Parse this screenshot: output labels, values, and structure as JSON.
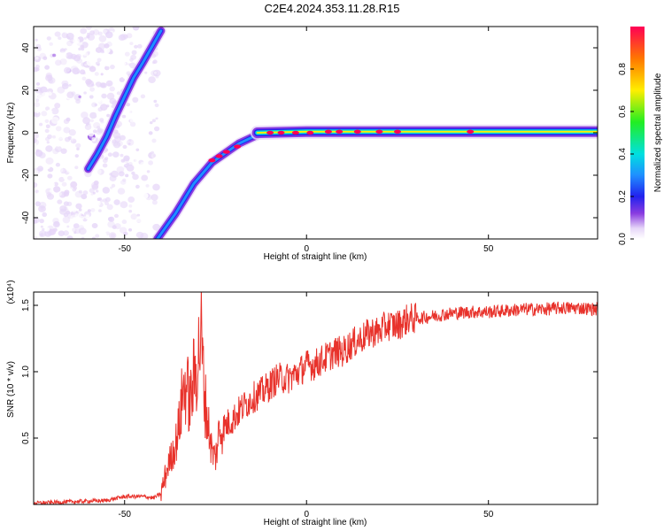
{
  "title": "C2E4.2024.353.11.28.R15",
  "chart_data": [
    {
      "type": "heatmap",
      "xlabel": "Height of straight line (km)",
      "ylabel": "Frequency (Hz)",
      "xlim": [
        -75,
        80
      ],
      "ylim": [
        -50,
        50
      ],
      "xticks": [
        -50,
        0,
        50
      ],
      "yticks": [
        -40,
        -20,
        0,
        20,
        40
      ],
      "colorbar": {
        "label": "Normalized spectral amplitude",
        "range": [
          0,
          1
        ],
        "ticks": [
          "0.0",
          "0.2",
          "0.4",
          "0.6",
          "0.8"
        ]
      },
      "traces": [
        {
          "x": [
            -60.0,
            -57.5,
            -55.0,
            -52.5,
            -50.0,
            -47.5,
            -45.0,
            -42.0,
            -40.0
          ],
          "y": [
            -17,
            -10,
            -2,
            8,
            17,
            26,
            33,
            42,
            48
          ]
        },
        {
          "x": [
            -41.0,
            -38.5,
            -36.0,
            -33.5,
            -31.0,
            -28.5,
            -26.0,
            -23.5,
            -21.0,
            -18.5,
            -16.0,
            -13.5
          ],
          "y": [
            -50,
            -44,
            -38,
            -31,
            -24,
            -19,
            -14,
            -11,
            -8,
            -5,
            -3,
            -1
          ]
        },
        {
          "x": [
            -13.5,
            0.0,
            20.0,
            40.0,
            60.0,
            80.0
          ],
          "y": [
            0,
            0.5,
            0.5,
            0.5,
            0.5,
            0.5
          ]
        }
      ]
    },
    {
      "type": "line",
      "xlabel": "Height of straight line (km)",
      "ylabel": "SNR (10 * v/v)",
      "scale_label": "(x10⁴)",
      "xlim": [
        -75,
        80
      ],
      "ylim": [
        0,
        1.6
      ],
      "xticks": [
        -50,
        0,
        50
      ],
      "yticks": [
        "0.5",
        "1.0",
        "1.5"
      ],
      "series": [
        {
          "color": "#e8322b",
          "x": [
            -75,
            -65,
            -55,
            -50,
            -45,
            -42,
            -40,
            -38,
            -36,
            -35,
            -34,
            -33,
            -32,
            -31,
            -30,
            -29,
            -28,
            -27,
            -26,
            -25,
            -24,
            -22,
            -20,
            -18,
            -15,
            -12,
            -10,
            -8,
            -5,
            -2,
            0,
            2,
            5,
            8,
            10,
            12,
            15,
            18,
            20,
            22,
            25,
            28,
            30,
            35,
            40,
            45,
            50,
            55,
            60,
            65,
            70,
            75,
            80
          ],
          "values": [
            0.01,
            0.02,
            0.03,
            0.06,
            0.06,
            0.05,
            0.08,
            0.3,
            0.45,
            0.6,
            0.85,
            0.9,
            0.75,
            0.95,
            1.05,
            1.3,
            0.8,
            0.6,
            0.4,
            0.35,
            0.55,
            0.6,
            0.65,
            0.72,
            0.8,
            0.85,
            0.9,
            0.95,
            0.95,
            1.0,
            1.05,
            1.05,
            1.1,
            1.15,
            1.15,
            1.2,
            1.25,
            1.3,
            1.3,
            1.35,
            1.35,
            1.4,
            1.4,
            1.42,
            1.44,
            1.45,
            1.45,
            1.46,
            1.47,
            1.47,
            1.48,
            1.48,
            1.47
          ]
        }
      ]
    }
  ]
}
